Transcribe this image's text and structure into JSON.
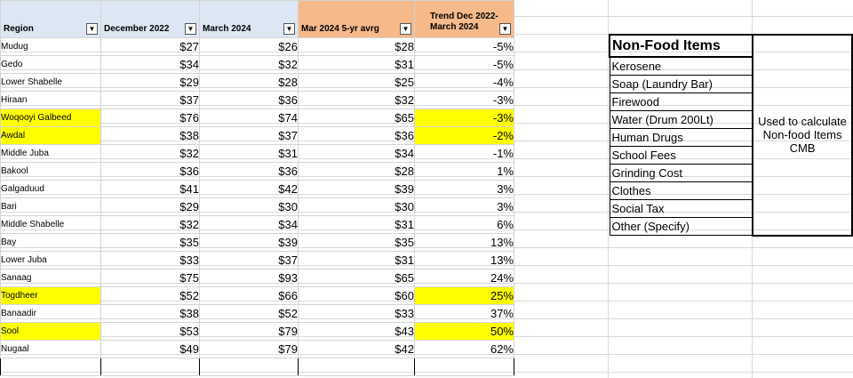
{
  "headers": {
    "region": "Region",
    "dec2022": "December 2022",
    "mar2024": "March 2024",
    "avg5yr": "Mar 2024 5-yr avrg",
    "trend": "Trend Dec 2022- March 2024",
    "dropdown_glyph": "▼"
  },
  "rows": [
    {
      "region": "Mudug",
      "dec": "$27",
      "mar": "$26",
      "avg": "$28",
      "trend": "-5%",
      "hl_region": false,
      "hl_trend": false
    },
    {
      "region": "Gedo",
      "dec": "$34",
      "mar": "$32",
      "avg": "$31",
      "trend": "-5%",
      "hl_region": false,
      "hl_trend": false
    },
    {
      "region": "Lower Shabelle",
      "dec": "$29",
      "mar": "$28",
      "avg": "$25",
      "trend": "-4%",
      "hl_region": false,
      "hl_trend": false
    },
    {
      "region": "Hiraan",
      "dec": "$37",
      "mar": "$36",
      "avg": "$32",
      "trend": "-3%",
      "hl_region": false,
      "hl_trend": false
    },
    {
      "region": "Woqooyi Galbeed",
      "dec": "$76",
      "mar": "$74",
      "avg": "$65",
      "trend": "-3%",
      "hl_region": true,
      "hl_trend": true
    },
    {
      "region": "Awdal",
      "dec": "$38",
      "mar": "$37",
      "avg": "$36",
      "trend": "-2%",
      "hl_region": true,
      "hl_trend": true
    },
    {
      "region": "Middle Juba",
      "dec": "$32",
      "mar": "$31",
      "avg": "$34",
      "trend": "-1%",
      "hl_region": false,
      "hl_trend": false
    },
    {
      "region": "Bakool",
      "dec": "$36",
      "mar": "$36",
      "avg": "$28",
      "trend": "1%",
      "hl_region": false,
      "hl_trend": false
    },
    {
      "region": "Galgaduud",
      "dec": "$41",
      "mar": "$42",
      "avg": "$39",
      "trend": "3%",
      "hl_region": false,
      "hl_trend": false
    },
    {
      "region": "Bari",
      "dec": "$29",
      "mar": "$30",
      "avg": "$30",
      "trend": "3%",
      "hl_region": false,
      "hl_trend": false
    },
    {
      "region": "Middle Shabelle",
      "dec": "$32",
      "mar": "$34",
      "avg": "$31",
      "trend": "6%",
      "hl_region": false,
      "hl_trend": false
    },
    {
      "region": "Bay",
      "dec": "$35",
      "mar": "$39",
      "avg": "$35",
      "trend": "13%",
      "hl_region": false,
      "hl_trend": false
    },
    {
      "region": "Lower Juba",
      "dec": "$33",
      "mar": "$37",
      "avg": "$31",
      "trend": "13%",
      "hl_region": false,
      "hl_trend": false
    },
    {
      "region": "Sanaag",
      "dec": "$75",
      "mar": "$93",
      "avg": "$65",
      "trend": "24%",
      "hl_region": false,
      "hl_trend": false
    },
    {
      "region": "Togdheer",
      "dec": "$52",
      "mar": "$66",
      "avg": "$60",
      "trend": "25%",
      "hl_region": true,
      "hl_trend": true
    },
    {
      "region": "Banaadir",
      "dec": "$38",
      "mar": "$52",
      "avg": "$33",
      "trend": "37%",
      "hl_region": false,
      "hl_trend": false
    },
    {
      "region": "Sool",
      "dec": "$53",
      "mar": "$79",
      "avg": "$43",
      "trend": "50%",
      "hl_region": true,
      "hl_trend": true
    },
    {
      "region": "Nugaal",
      "dec": "$49",
      "mar": "$79",
      "avg": "$42",
      "trend": "62%",
      "hl_region": false,
      "hl_trend": false
    }
  ],
  "nonfood": {
    "title": "Non-Food Items",
    "items": [
      "Kerosene",
      "Soap (Laundry Bar)",
      "Firewood",
      "Water (Drum 200Lt)",
      "Human Drugs",
      "School Fees",
      "Grinding Cost",
      "Clothes",
      "Social Tax",
      "Other (Specify)"
    ],
    "note": "Used to calculate  Non-food Items CMB"
  },
  "colors": {
    "highlight": "#ffff00",
    "header_blue": "#dde7f3",
    "header_orange": "#f6b98a"
  }
}
